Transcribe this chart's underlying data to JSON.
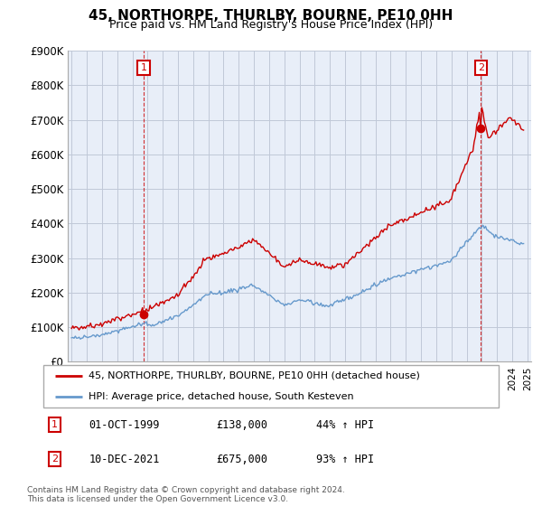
{
  "title": "45, NORTHORPE, THURLBY, BOURNE, PE10 0HH",
  "subtitle": "Price paid vs. HM Land Registry's House Price Index (HPI)",
  "ylim": [
    0,
    900000
  ],
  "yticks": [
    0,
    100000,
    200000,
    300000,
    400000,
    500000,
    600000,
    700000,
    800000,
    900000
  ],
  "ytick_labels": [
    "£0",
    "£100K",
    "£200K",
    "£300K",
    "£400K",
    "£500K",
    "£600K",
    "£700K",
    "£800K",
    "£900K"
  ],
  "house_color": "#cc0000",
  "hpi_color": "#6699cc",
  "plot_bg_color": "#e8eef8",
  "marker1_date": "1999-10-01",
  "marker1_price": 138000,
  "marker1_label": "01-OCT-1999",
  "marker1_price_label": "£138,000",
  "marker1_pct": "44% ↑ HPI",
  "marker2_date": "2021-12-10",
  "marker2_price": 675000,
  "marker2_label": "10-DEC-2021",
  "marker2_price_label": "£675,000",
  "marker2_pct": "93% ↑ HPI",
  "legend_house": "45, NORTHORPE, THURLBY, BOURNE, PE10 0HH (detached house)",
  "legend_hpi": "HPI: Average price, detached house, South Kesteven",
  "footer": "Contains HM Land Registry data © Crown copyright and database right 2024.\nThis data is licensed under the Open Government Licence v3.0.",
  "grid_color": "#c0c8d8"
}
